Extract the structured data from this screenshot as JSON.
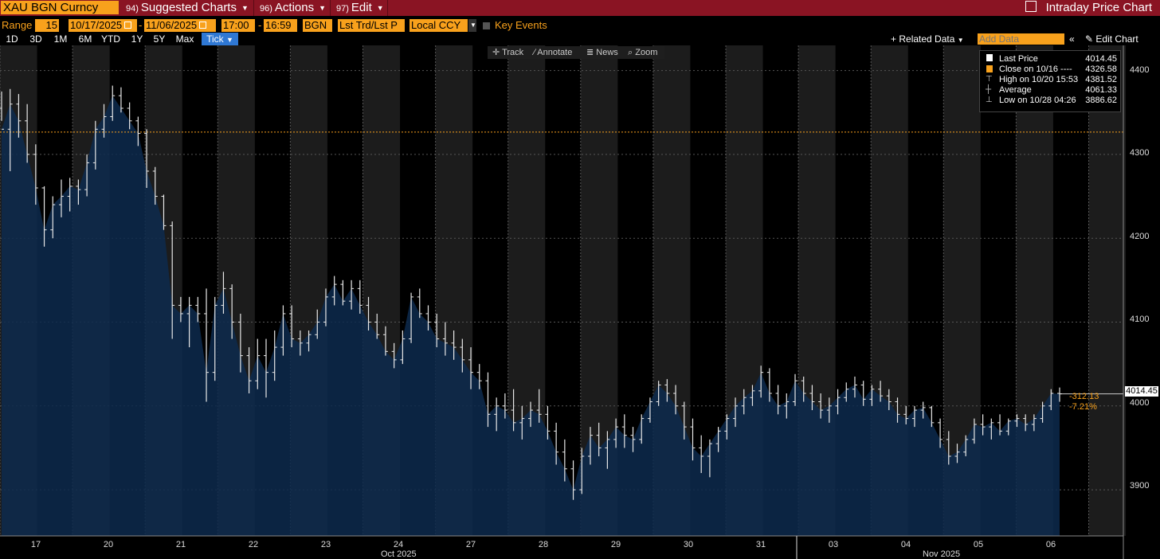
{
  "header": {
    "ticker": "XAU BGN Curncy",
    "menus": [
      {
        "num": "94)",
        "label": "Suggested Charts"
      },
      {
        "num": "96)",
        "label": "Actions"
      },
      {
        "num": "97)",
        "label": "Edit"
      }
    ],
    "app_title": "Intraday Price Chart"
  },
  "controls": {
    "range_label": "Range",
    "bar_size": "15",
    "start_date": "10/17/2025",
    "end_date": "11/06/2025",
    "start_time": "17:00",
    "end_time": "16:59",
    "source": "BGN",
    "field": "Lst Trd/Lst P",
    "currency": "Local CCY",
    "key_events": "Key Events",
    "ranges": [
      "1D",
      "3D",
      "1M",
      "6M",
      "YTD",
      "1Y",
      "5Y",
      "Max",
      "Tick"
    ],
    "active_range": "Tick",
    "related_data": "Related Data",
    "add_data_placeholder": "Add Data",
    "edit_chart": "Edit Chart"
  },
  "toolbar": {
    "track": "Track",
    "annotate": "Annotate",
    "news": "News",
    "zoom": "Zoom"
  },
  "legend": {
    "last_price_label": "Last Price",
    "last_price": "4014.45",
    "close_label": "Close on 10/16 ----",
    "close": "4326.58",
    "high_label": "High on 10/20 15:53",
    "high": "4381.52",
    "average_label": "Average",
    "average": "4061.33",
    "low_label": "Low on 10/28 04:26",
    "low": "3886.62"
  },
  "price_tag": {
    "last": "4014.45",
    "change": "-312.13",
    "change_pct": "-7.21%"
  },
  "colors": {
    "accent": "#f8a11c",
    "brand_bar": "#8a1423",
    "area": "#0a2240",
    "active_tab": "#2f78d4"
  },
  "chart_data": {
    "type": "area",
    "ylim": [
      3845,
      4430
    ],
    "yticks": [
      3900,
      4000,
      4100,
      4200,
      4300,
      4400
    ],
    "reference_line": 4326.58,
    "days": [
      "17",
      "20",
      "21",
      "22",
      "23",
      "24",
      "27",
      "28",
      "29",
      "30",
      "31",
      "03",
      "04",
      "05",
      "06"
    ],
    "month_labels": [
      "Oct 2025",
      "Nov 2025"
    ],
    "series": [
      {
        "values": [
          [
            4355,
            4375,
            4340,
            4330
          ],
          [
            4330,
            4378,
            4280,
            4360
          ],
          [
            4360,
            4372,
            4320,
            4340
          ],
          [
            4340,
            4360,
            4290,
            4300
          ],
          [
            4300,
            4312,
            4240,
            4260
          ],
          [
            4260,
            4262,
            4190,
            4210
          ],
          [
            4210,
            4250,
            4200,
            4240
          ],
          [
            4240,
            4270,
            4225,
            4250
          ],
          [
            4250,
            4272,
            4232,
            4262
          ],
          [
            4262,
            4270,
            4240,
            4258
          ],
          [
            4258,
            4300,
            4250,
            4290
          ],
          [
            4290,
            4340,
            4282,
            4330
          ],
          [
            4330,
            4360,
            4320,
            4345
          ],
          [
            4345,
            4382,
            4340,
            4370
          ],
          [
            4370,
            4380,
            4350,
            4355
          ],
          [
            4355,
            4362,
            4330,
            4340
          ],
          [
            4340,
            4345,
            4310,
            4325
          ],
          [
            4325,
            4330,
            4260,
            4280
          ],
          [
            4280,
            4285,
            4240,
            4250
          ],
          [
            4250,
            4252,
            4210,
            4215
          ],
          [
            4215,
            4220,
            4080,
            4120
          ],
          [
            4120,
            4130,
            4100,
            4110
          ],
          [
            4110,
            4130,
            4070,
            4120
          ],
          [
            4120,
            4130,
            4100,
            4110
          ],
          [
            4110,
            4140,
            4005,
            4040
          ],
          [
            4040,
            4130,
            4030,
            4120
          ],
          [
            4120,
            4160,
            4110,
            4140
          ],
          [
            4140,
            4145,
            4080,
            4100
          ],
          [
            4100,
            4110,
            4040,
            4060
          ],
          [
            4060,
            4070,
            4015,
            4030
          ],
          [
            4030,
            4080,
            4020,
            4060
          ],
          [
            4060,
            4080,
            4010,
            4040
          ],
          [
            4040,
            4090,
            4030,
            4070
          ],
          [
            4070,
            4120,
            4060,
            4110
          ],
          [
            4110,
            4120,
            4070,
            4080
          ],
          [
            4080,
            4090,
            4060,
            4075
          ],
          [
            4075,
            4090,
            4065,
            4085
          ],
          [
            4085,
            4115,
            4080,
            4100
          ],
          [
            4100,
            4140,
            4095,
            4130
          ],
          [
            4130,
            4155,
            4120,
            4145
          ],
          [
            4145,
            4150,
            4120,
            4125
          ],
          [
            4125,
            4150,
            4115,
            4140
          ],
          [
            4140,
            4150,
            4110,
            4120
          ],
          [
            4120,
            4130,
            4090,
            4100
          ],
          [
            4100,
            4110,
            4080,
            4085
          ],
          [
            4085,
            4095,
            4060,
            4065
          ],
          [
            4065,
            4075,
            4045,
            4055
          ],
          [
            4055,
            4090,
            4050,
            4080
          ],
          [
            4080,
            4135,
            4075,
            4130
          ],
          [
            4130,
            4140,
            4105,
            4110
          ],
          [
            4110,
            4120,
            4090,
            4100
          ],
          [
            4100,
            4110,
            4070,
            4080
          ],
          [
            4080,
            4100,
            4060,
            4075
          ],
          [
            4075,
            4090,
            4055,
            4070
          ],
          [
            4070,
            4080,
            4040,
            4055
          ],
          [
            4055,
            4070,
            4020,
            4040
          ],
          [
            4040,
            4050,
            4020,
            4030
          ],
          [
            4030,
            4040,
            3975,
            3990
          ],
          [
            3990,
            4010,
            3970,
            4000
          ],
          [
            4000,
            4015,
            3985,
            3995
          ],
          [
            3995,
            4020,
            3970,
            3980
          ],
          [
            3980,
            4000,
            3960,
            3985
          ],
          [
            3985,
            4005,
            3975,
            3995
          ],
          [
            3995,
            4020,
            3980,
            3990
          ],
          [
            3990,
            4000,
            3960,
            3970
          ],
          [
            3970,
            3980,
            3930,
            3945
          ],
          [
            3945,
            3960,
            3910,
            3925
          ],
          [
            3925,
            3935,
            3888,
            3900
          ],
          [
            3900,
            3950,
            3895,
            3940
          ],
          [
            3940,
            3975,
            3930,
            3965
          ],
          [
            3965,
            3980,
            3940,
            3950
          ],
          [
            3950,
            3970,
            3925,
            3960
          ],
          [
            3960,
            3985,
            3950,
            3975
          ],
          [
            3975,
            3990,
            3950,
            3965
          ],
          [
            3965,
            3975,
            3945,
            3960
          ],
          [
            3960,
            3990,
            3955,
            3985
          ],
          [
            3985,
            4010,
            3980,
            4005
          ],
          [
            4005,
            4030,
            4000,
            4025
          ],
          [
            4025,
            4032,
            4005,
            4015
          ],
          [
            4015,
            4025,
            3990,
            4000
          ],
          [
            4000,
            4005,
            3960,
            3975
          ],
          [
            3975,
            3985,
            3935,
            3950
          ],
          [
            3950,
            3965,
            3920,
            3940
          ],
          [
            3940,
            3960,
            3915,
            3955
          ],
          [
            3955,
            3975,
            3945,
            3970
          ],
          [
            3970,
            3990,
            3960,
            3985
          ],
          [
            3985,
            4010,
            3975,
            4000
          ],
          [
            4000,
            4020,
            3990,
            4010
          ],
          [
            4010,
            4025,
            4000,
            4018
          ],
          [
            4018,
            4048,
            4010,
            4040
          ],
          [
            4040,
            4045,
            4005,
            4015
          ],
          [
            4015,
            4025,
            3990,
            4000
          ],
          [
            4000,
            4015,
            3985,
            4005
          ],
          [
            4005,
            4038,
            4000,
            4030
          ],
          [
            4030,
            4035,
            4005,
            4015
          ],
          [
            4015,
            4025,
            3995,
            4005
          ],
          [
            4005,
            4015,
            3985,
            3995
          ],
          [
            3995,
            4010,
            3980,
            4000
          ],
          [
            4000,
            4020,
            3990,
            4010
          ],
          [
            4010,
            4028,
            4005,
            4020
          ],
          [
            4020,
            4035,
            4010,
            4025
          ],
          [
            4025,
            4030,
            4000,
            4008
          ],
          [
            4008,
            4025,
            4000,
            4020
          ],
          [
            4020,
            4030,
            4005,
            4012
          ],
          [
            4012,
            4020,
            3995,
            4005
          ],
          [
            4005,
            4010,
            3980,
            3990
          ],
          [
            3990,
            4000,
            3978,
            3985
          ],
          [
            3985,
            4000,
            3975,
            3995
          ],
          [
            3995,
            4005,
            3985,
            3998
          ],
          [
            3998,
            4000,
            3975,
            3980
          ],
          [
            3980,
            3985,
            3950,
            3960
          ],
          [
            3960,
            3970,
            3930,
            3940
          ],
          [
            3940,
            3955,
            3932,
            3945
          ],
          [
            3945,
            3965,
            3940,
            3960
          ],
          [
            3960,
            3985,
            3955,
            3978
          ],
          [
            3978,
            3990,
            3965,
            3975
          ],
          [
            3975,
            3985,
            3960,
            3980
          ],
          [
            3980,
            3990,
            3965,
            3970
          ],
          [
            3970,
            3985,
            3965,
            3982
          ],
          [
            3982,
            3990,
            3975,
            3985
          ],
          [
            3985,
            3990,
            3970,
            3978
          ],
          [
            3978,
            3990,
            3970,
            3985
          ],
          [
            3985,
            4005,
            3980,
            4000
          ],
          [
            4000,
            4020,
            3995,
            4015
          ],
          [
            4015,
            4022,
            4005,
            4014.45
          ]
        ]
      }
    ]
  }
}
